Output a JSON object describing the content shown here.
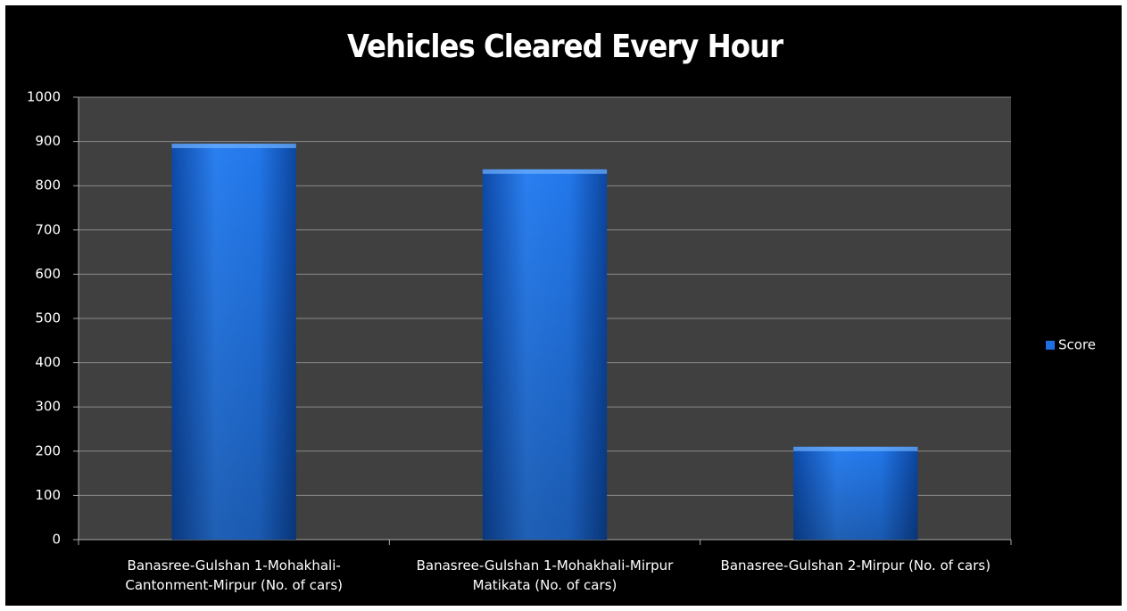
{
  "chart_data": {
    "type": "bar",
    "title": "Vehicles Cleared Every Hour",
    "categories": [
      "Banasree-Gulshan 1-Mohakhali-Cantonment-Mirpur (No. of cars)",
      "Banasree-Gulshan 1-Mohakhali-Mirpur Matikata (No. of cars)",
      "Banasree-Gulshan 2-Mirpur (No. of cars)"
    ],
    "series": [
      {
        "name": "Score",
        "color": "#1f6fe0",
        "values": [
          895,
          837,
          210
        ]
      }
    ],
    "ylim": [
      0,
      1000
    ],
    "yticks": [
      0,
      100,
      200,
      300,
      400,
      500,
      600,
      700,
      800,
      900,
      1000
    ],
    "grid": true,
    "legend": "right"
  }
}
